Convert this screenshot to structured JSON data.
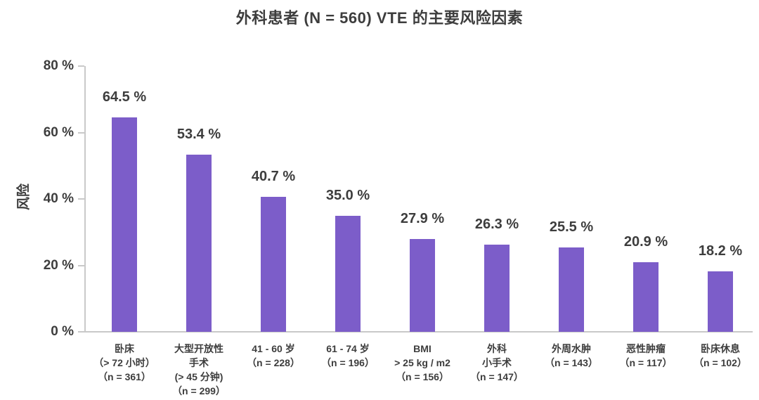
{
  "page": {
    "background_color": "#ffffff"
  },
  "chart_data": {
    "type": "bar",
    "title": "外科患者 (N = 560) VTE 的主要风险因素",
    "xlabel": "",
    "ylabel": "风险",
    "ylim": [
      0,
      80
    ],
    "grid": false,
    "legend": "none",
    "bar_color": "#7c5dc9",
    "axis_color": "#c9c9c9",
    "text_color": "#3d3d3d",
    "y_ticks": [
      {
        "value": 0,
        "label": "0 %"
      },
      {
        "value": 20,
        "label": "20 %"
      },
      {
        "value": 40,
        "label": "40 %"
      },
      {
        "value": 60,
        "label": "60 %"
      },
      {
        "value": 80,
        "label": "80 %"
      }
    ],
    "bars": [
      {
        "value": 64.5,
        "value_label": "64.5 %",
        "category_lines": [
          "卧床",
          "（> 72 小时）",
          "（n = 361）"
        ]
      },
      {
        "value": 53.4,
        "value_label": "53.4 %",
        "category_lines": [
          "大型开放性",
          "手术",
          "(> 45 分钟)",
          "（n = 299）"
        ]
      },
      {
        "value": 40.7,
        "value_label": "40.7 %",
        "category_lines": [
          "41 - 60 岁",
          "（n = 228）"
        ]
      },
      {
        "value": 35.0,
        "value_label": "35.0 %",
        "category_lines": [
          "61 - 74 岁",
          "（n = 196）"
        ]
      },
      {
        "value": 27.9,
        "value_label": "27.9 %",
        "category_lines": [
          "BMI",
          "> 25 kg / m2",
          "（n = 156）"
        ]
      },
      {
        "value": 26.3,
        "value_label": "26.3 %",
        "category_lines": [
          "外科",
          "小手术",
          "（n = 147）"
        ]
      },
      {
        "value": 25.5,
        "value_label": "25.5 %",
        "category_lines": [
          "外周水肿",
          "（n = 143）"
        ]
      },
      {
        "value": 20.9,
        "value_label": "20.9 %",
        "category_lines": [
          "恶性肿瘤",
          "（n = 117）"
        ]
      },
      {
        "value": 18.2,
        "value_label": "18.2 %",
        "category_lines": [
          "卧床休息",
          "（n = 102）"
        ]
      }
    ]
  }
}
